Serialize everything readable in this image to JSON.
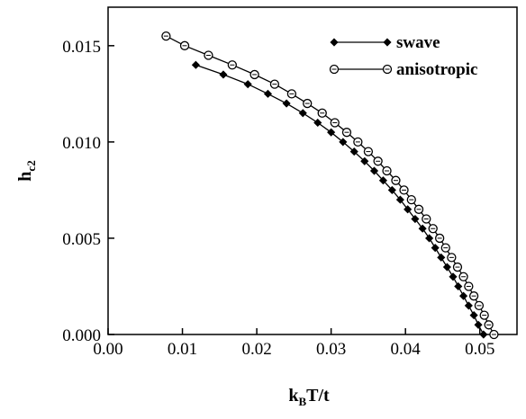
{
  "chart_data": {
    "type": "line",
    "xlabel": {
      "main": "k",
      "sub": "B",
      "rest": "T/t"
    },
    "ylabel": {
      "main": "h",
      "sub": "c2"
    },
    "xlim": [
      0.0,
      0.055
    ],
    "ylim": [
      0.0,
      0.017
    ],
    "x_ticks": [
      "0.00",
      "0.01",
      "0.02",
      "0.03",
      "0.04",
      "0.05"
    ],
    "y_ticks": [
      "0.000",
      "0.005",
      "0.010",
      "0.015"
    ],
    "legend_position": "top-right",
    "grid": false,
    "series": [
      {
        "name": "swave",
        "marker": "filled-diamond",
        "color": "#000000",
        "points": [
          [
            0.0118,
            0.014
          ],
          [
            0.0155,
            0.0135
          ],
          [
            0.0188,
            0.013
          ],
          [
            0.0215,
            0.0125
          ],
          [
            0.024,
            0.012
          ],
          [
            0.0262,
            0.0115
          ],
          [
            0.0282,
            0.011
          ],
          [
            0.03,
            0.0105
          ],
          [
            0.0316,
            0.01
          ],
          [
            0.0331,
            0.0095
          ],
          [
            0.0345,
            0.009
          ],
          [
            0.0358,
            0.0085
          ],
          [
            0.037,
            0.008
          ],
          [
            0.0382,
            0.0075
          ],
          [
            0.0393,
            0.007
          ],
          [
            0.0403,
            0.0065
          ],
          [
            0.0413,
            0.006
          ],
          [
            0.0423,
            0.0055
          ],
          [
            0.0432,
            0.005
          ],
          [
            0.044,
            0.0045
          ],
          [
            0.0448,
            0.004
          ],
          [
            0.0456,
            0.0035
          ],
          [
            0.0464,
            0.003
          ],
          [
            0.0471,
            0.0025
          ],
          [
            0.0478,
            0.002
          ],
          [
            0.0485,
            0.0015
          ],
          [
            0.0492,
            0.001
          ],
          [
            0.0498,
            0.0005
          ],
          [
            0.0505,
            0.0
          ]
        ]
      },
      {
        "name": "anisotropic",
        "marker": "open-circle",
        "color": "#000000",
        "points": [
          [
            0.0078,
            0.0155
          ],
          [
            0.0103,
            0.015
          ],
          [
            0.0135,
            0.0145
          ],
          [
            0.0167,
            0.014
          ],
          [
            0.0197,
            0.0135
          ],
          [
            0.0224,
            0.013
          ],
          [
            0.0247,
            0.0125
          ],
          [
            0.0268,
            0.012
          ],
          [
            0.0288,
            0.0115
          ],
          [
            0.0305,
            0.011
          ],
          [
            0.0321,
            0.0105
          ],
          [
            0.0336,
            0.01
          ],
          [
            0.035,
            0.0095
          ],
          [
            0.0363,
            0.009
          ],
          [
            0.0375,
            0.0085
          ],
          [
            0.0387,
            0.008
          ],
          [
            0.0398,
            0.0075
          ],
          [
            0.0408,
            0.007
          ],
          [
            0.0418,
            0.0065
          ],
          [
            0.0428,
            0.006
          ],
          [
            0.0437,
            0.0055
          ],
          [
            0.0446,
            0.005
          ],
          [
            0.0454,
            0.0045
          ],
          [
            0.0462,
            0.004
          ],
          [
            0.047,
            0.0035
          ],
          [
            0.0478,
            0.003
          ],
          [
            0.0485,
            0.0025
          ],
          [
            0.0492,
            0.002
          ],
          [
            0.0499,
            0.0015
          ],
          [
            0.0506,
            0.001
          ],
          [
            0.0512,
            0.0005
          ],
          [
            0.0519,
            0.0
          ]
        ]
      }
    ]
  }
}
